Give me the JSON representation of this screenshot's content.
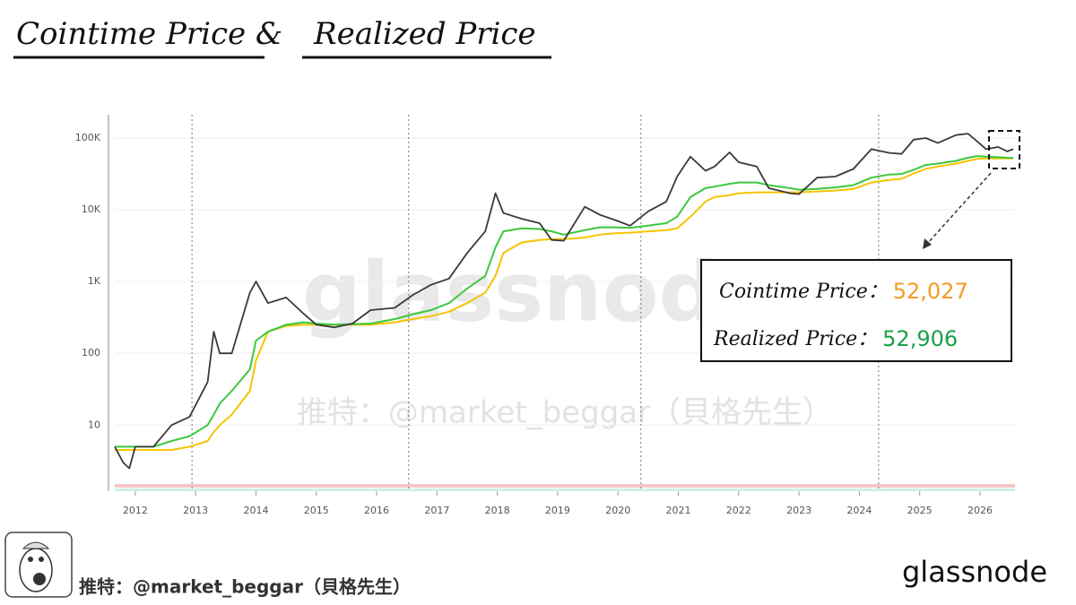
{
  "chart_data": {
    "type": "line",
    "title": "Cointime Price &",
    "title_2": "Realized Price",
    "log_y": true,
    "grid": true,
    "xlim": [
      2011.66,
      2026.58
    ],
    "xticks": [
      2012,
      2013,
      2014,
      2015,
      2016,
      2017,
      2018,
      2019,
      2020,
      2021,
      2022,
      2023,
      2024,
      2025,
      2026
    ],
    "ylim": [
      1.2,
      211000
    ],
    "yticks": [
      {
        "value": 100000,
        "label": "100K"
      },
      {
        "value": 10000,
        "label": "10K"
      },
      {
        "value": 1000,
        "label": "1K"
      },
      100,
      10
    ],
    "vlines": [
      2012.94,
      2016.53,
      2020.38,
      2024.32
    ],
    "x": [
      2011.66,
      2011.8,
      2011.9,
      2012.0,
      2012.3,
      2012.6,
      2012.9,
      2013.2,
      2013.3,
      2013.4,
      2013.6,
      2013.9,
      2014.0,
      2014.2,
      2014.5,
      2014.8,
      2015.0,
      2015.3,
      2015.6,
      2015.9,
      2016.3,
      2016.6,
      2016.9,
      2017.2,
      2017.5,
      2017.8,
      2017.97,
      2018.1,
      2018.4,
      2018.7,
      2018.9,
      2019.1,
      2019.45,
      2019.7,
      2019.95,
      2020.2,
      2020.5,
      2020.8,
      2020.98,
      2021.2,
      2021.45,
      2021.6,
      2021.85,
      2022.0,
      2022.3,
      2022.5,
      2022.85,
      2023.0,
      2023.3,
      2023.6,
      2023.9,
      2024.2,
      2024.5,
      2024.7,
      2024.9,
      2025.1,
      2025.3,
      2025.6,
      2025.8,
      2025.95,
      2026.1,
      2026.3,
      2026.45,
      2026.55
    ],
    "series": [
      {
        "color": "#f5c400",
        "values": [
          4.5,
          4.5,
          4.5,
          4.5,
          4.5,
          4.5,
          5,
          6,
          8,
          10,
          14,
          30,
          80,
          200,
          240,
          250,
          250,
          250,
          250,
          250,
          270,
          300,
          330,
          380,
          500,
          700,
          1200,
          2500,
          3500,
          3800,
          3900,
          3900,
          4100,
          4500,
          4700,
          4800,
          5000,
          5200,
          5500,
          8000,
          13000,
          15000,
          16000,
          17000,
          17500,
          17500,
          17500,
          17500,
          18000,
          18500,
          19500,
          24000,
          26000,
          27000,
          32000,
          37000,
          40000,
          44000,
          48000,
          51000,
          52000,
          52000,
          52000,
          52027
        ]
      },
      {
        "color": "#3cc83c",
        "values": [
          5,
          5,
          5,
          5,
          5,
          6,
          7,
          10,
          14,
          20,
          30,
          60,
          150,
          200,
          250,
          270,
          260,
          250,
          255,
          260,
          300,
          350,
          400,
          500,
          800,
          1200,
          3000,
          5000,
          5500,
          5400,
          5000,
          4500,
          5200,
          5700,
          5700,
          5600,
          6000,
          6500,
          8000,
          15000,
          20000,
          21000,
          23000,
          24000,
          24000,
          22000,
          20000,
          19000,
          19500,
          20500,
          22000,
          28000,
          31000,
          31500,
          36000,
          42000,
          44000,
          48000,
          53000,
          56000,
          55000,
          54000,
          53000,
          52906
        ]
      },
      {
        "color": "#3a3a3a",
        "values": [
          5,
          3,
          2.5,
          5,
          5,
          10,
          13,
          40,
          200,
          100,
          100,
          700,
          1000,
          500,
          600,
          350,
          250,
          230,
          260,
          400,
          430,
          650,
          900,
          1100,
          2500,
          5000,
          17000,
          9000,
          7500,
          6500,
          3800,
          3700,
          11000,
          8500,
          7200,
          6000,
          9500,
          13000,
          29000,
          55000,
          35000,
          40000,
          63000,
          46000,
          40000,
          20000,
          17000,
          16500,
          28000,
          29000,
          37000,
          70000,
          62000,
          60000,
          95000,
          100000,
          85000,
          110000,
          115000,
          90000,
          70000,
          75000,
          65000,
          70000
        ]
      }
    ],
    "annotations": [
      {
        "text": "Cointime Price：",
        "label": "52,027",
        "color": "#f59a23"
      },
      {
        "text": "Realized  Price：",
        "label": "52,906",
        "color": "#1aa04a"
      }
    ],
    "watermark": "glassnode",
    "watermark_2": "推特：@market_beggar（貝格先生）",
    "footer_text": "推特：@market_beggar（貝格先生）",
    "footer_logo": "glassnode"
  }
}
